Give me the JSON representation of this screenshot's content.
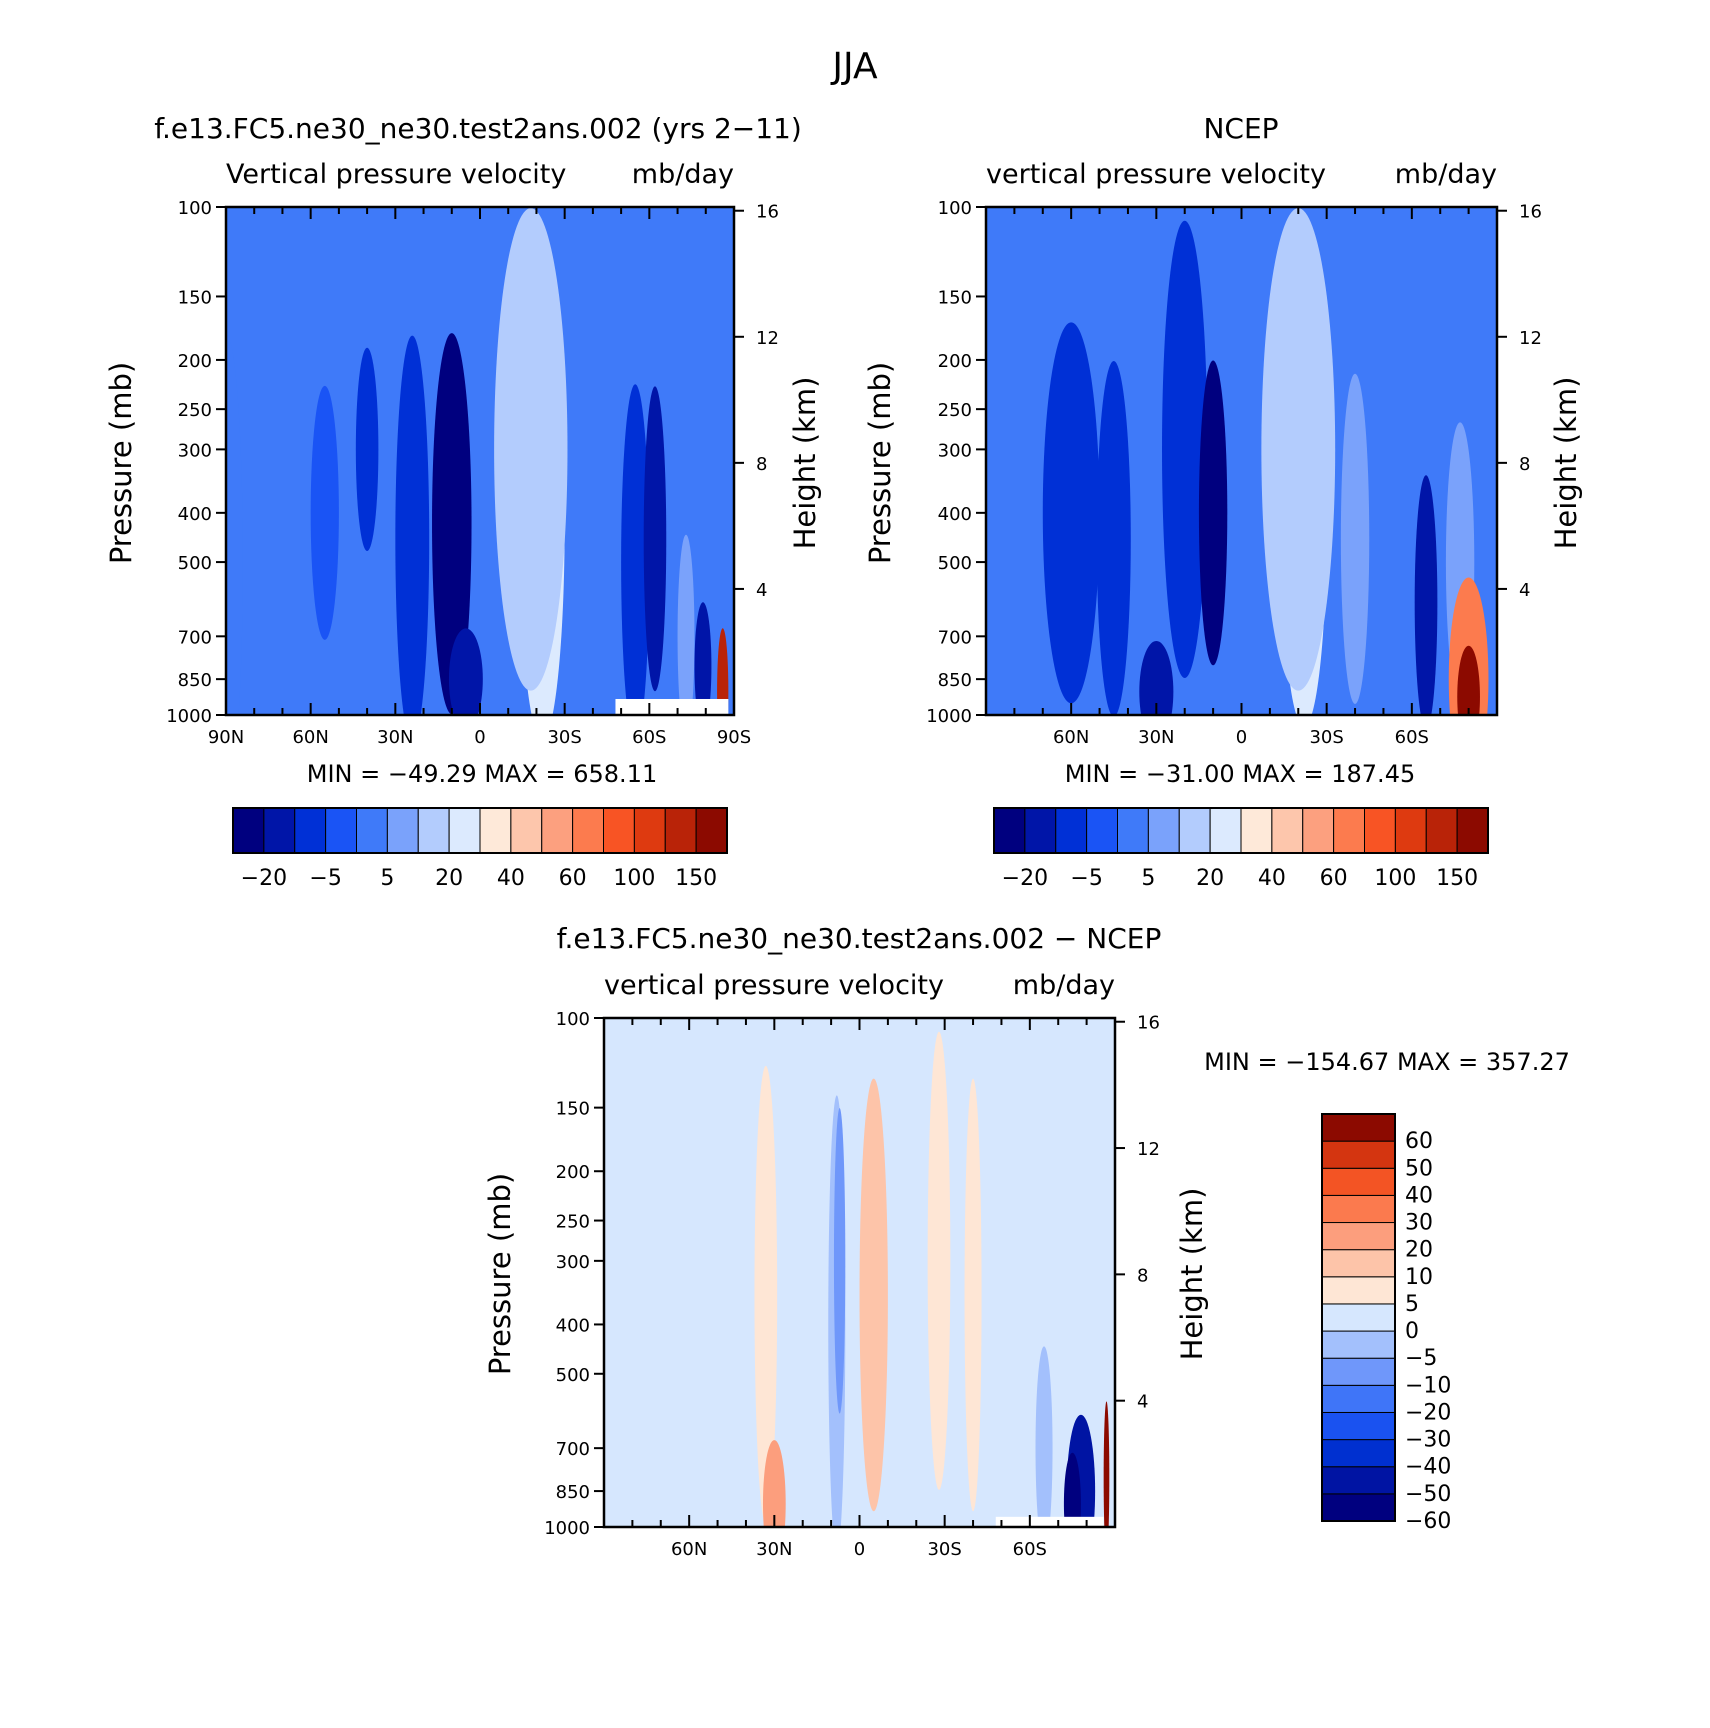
{
  "figure": {
    "title": "JJA"
  },
  "palettes": {
    "full": [
      "#00007f",
      "#0015a8",
      "#0030d6",
      "#1a54f5",
      "#3f7af9",
      "#7aa2fb",
      "#b3ccfd",
      "#dceafe",
      "#fee9d9",
      "#fdc6ac",
      "#fca07f",
      "#fc7b4e",
      "#f85424",
      "#de3a10",
      "#b92308",
      "#8c0a00"
    ],
    "diff": [
      "#00007f",
      "#0014a3",
      "#0030d0",
      "#1a52f0",
      "#3f75f8",
      "#6f97fa",
      "#a3c0fc",
      "#d6e7fe",
      "#fee6d5",
      "#fdc4a9",
      "#fc9e7d",
      "#fb7a4e",
      "#f35424",
      "#d43510",
      "#8c0a00"
    ]
  },
  "chart_data": [
    {
      "type": "heatmap",
      "title": "f.e13.FC5.ne30_ne30.test2ans.002 (yrs 2−11)",
      "subtitle": "Vertical pressure velocity",
      "units": "mb/day",
      "ylabel": "Pressure (mb)",
      "y2label": "Height (km)",
      "x_ticks": [
        "90N",
        "60N",
        "30N",
        "0",
        "30S",
        "60S",
        "90S"
      ],
      "y_ticks": [
        "100",
        "150",
        "200",
        "250",
        "300",
        "400",
        "500",
        "700",
        "850",
        "1000"
      ],
      "y2_ticks": [
        "16",
        "12",
        "8",
        "4"
      ],
      "xlim": [
        90,
        -90
      ],
      "ylim": [
        1000,
        100
      ],
      "y_scale": "log",
      "stats": "MIN = −49.29   MAX = 658.11",
      "colorbar_labels": [
        "−20",
        "−5",
        "5",
        "20",
        "40",
        "60",
        "100",
        "150"
      ],
      "field": [
        {
          "lat": 90,
          "p": 500,
          "level": 4,
          "rx": 6,
          "ry": 0.9
        },
        {
          "lat": 55,
          "p": 400,
          "level": 3,
          "rx": 5,
          "ry": 0.5
        },
        {
          "lat": 40,
          "p": 300,
          "level": 2,
          "rx": 4,
          "ry": 0.4
        },
        {
          "lat": 24,
          "p": 450,
          "level": 2,
          "rx": 6,
          "ry": 0.8
        },
        {
          "lat": 10,
          "p": 420,
          "level": 0,
          "rx": 7,
          "ry": 0.75
        },
        {
          "lat": 5,
          "p": 850,
          "level": 1,
          "rx": 6,
          "ry": 0.2
        },
        {
          "lat": -22,
          "p": 420,
          "level": 7,
          "rx": 8,
          "ry": 0.85
        },
        {
          "lat": -18,
          "p": 300,
          "level": 6,
          "rx": 13,
          "ry": 0.95
        },
        {
          "lat": -55,
          "p": 500,
          "level": 2,
          "rx": 5,
          "ry": 0.7
        },
        {
          "lat": -62,
          "p": 450,
          "level": 1,
          "rx": 4,
          "ry": 0.6
        },
        {
          "lat": -73,
          "p": 700,
          "level": 5,
          "rx": 3,
          "ry": 0.4
        },
        {
          "lat": -79,
          "p": 800,
          "level": 1,
          "rx": 3,
          "ry": 0.25
        },
        {
          "lat": -86,
          "p": 900,
          "level": 14,
          "rx": 2,
          "ry": 0.25
        }
      ],
      "missing": [
        {
          "lat0": -48,
          "lat1": -88,
          "p0": 930,
          "p1": 1000
        }
      ]
    },
    {
      "type": "heatmap",
      "title": "NCEP",
      "subtitle": "vertical pressure velocity",
      "units": "mb/day",
      "ylabel": "Pressure (mb)",
      "y2label": "Height (km)",
      "x_ticks": [
        "",
        "60N",
        "30N",
        "0",
        "30S",
        "60S",
        ""
      ],
      "y_ticks": [
        "100",
        "150",
        "200",
        "250",
        "300",
        "400",
        "500",
        "700",
        "850",
        "1000"
      ],
      "y2_ticks": [
        "16",
        "12",
        "8",
        "4"
      ],
      "xlim": [
        90,
        -90
      ],
      "ylim": [
        1000,
        100
      ],
      "y_scale": "log",
      "stats": "MIN = −31.00   MAX = 187.45",
      "colorbar_labels": [
        "−20",
        "−5",
        "5",
        "20",
        "40",
        "60",
        "100",
        "150"
      ],
      "field": [
        {
          "lat": 60,
          "p": 400,
          "level": 2,
          "rx": 10,
          "ry": 0.75
        },
        {
          "lat": 45,
          "p": 450,
          "level": 2,
          "rx": 6,
          "ry": 0.7
        },
        {
          "lat": 20,
          "p": 300,
          "level": 2,
          "rx": 8,
          "ry": 0.9
        },
        {
          "lat": 10,
          "p": 400,
          "level": 0,
          "rx": 5,
          "ry": 0.6
        },
        {
          "lat": 30,
          "p": 900,
          "level": 1,
          "rx": 6,
          "ry": 0.2
        },
        {
          "lat": -22,
          "p": 420,
          "level": 7,
          "rx": 8,
          "ry": 0.8
        },
        {
          "lat": -20,
          "p": 300,
          "level": 6,
          "rx": 13,
          "ry": 0.95
        },
        {
          "lat": -40,
          "p": 450,
          "level": 5,
          "rx": 5,
          "ry": 0.65
        },
        {
          "lat": -65,
          "p": 600,
          "level": 1,
          "rx": 4,
          "ry": 0.5
        },
        {
          "lat": -77,
          "p": 500,
          "level": 5,
          "rx": 5,
          "ry": 0.55
        },
        {
          "lat": -80,
          "p": 850,
          "level": 11,
          "rx": 7,
          "ry": 0.4
        },
        {
          "lat": -80,
          "p": 920,
          "level": 15,
          "rx": 4,
          "ry": 0.2
        }
      ],
      "missing": []
    },
    {
      "type": "heatmap",
      "title": "f.e13.FC5.ne30_ne30.test2ans.002 − NCEP",
      "subtitle": "vertical pressure velocity",
      "units": "mb/day",
      "ylabel": "Pressure (mb)",
      "y2label": "Height (km)",
      "x_ticks": [
        "",
        "60N",
        "30N",
        "0",
        "30S",
        "60S",
        ""
      ],
      "y_ticks": [
        "100",
        "150",
        "200",
        "250",
        "300",
        "400",
        "500",
        "700",
        "850",
        "1000"
      ],
      "y2_ticks": [
        "16",
        "12",
        "8",
        "4"
      ],
      "xlim": [
        90,
        -90
      ],
      "ylim": [
        1000,
        100
      ],
      "y_scale": "log",
      "stats": "MIN = −154.67   MAX = 357.27",
      "colorbar_labels": [
        "60",
        "50",
        "40",
        "30",
        "20",
        "10",
        "5",
        "0",
        "−5",
        "−10",
        "−20",
        "−30",
        "−40",
        "−50",
        "−60"
      ],
      "field": [
        {
          "lat": 33,
          "p": 350,
          "level": 8,
          "rx": 4,
          "ry": 0.9
        },
        {
          "lat": 30,
          "p": 900,
          "level": 10,
          "rx": 4,
          "ry": 0.25
        },
        {
          "lat": 8,
          "p": 400,
          "level": 6,
          "rx": 3,
          "ry": 0.9
        },
        {
          "lat": 7,
          "p": 300,
          "level": 5,
          "rx": 2,
          "ry": 0.6
        },
        {
          "lat": -5,
          "p": 350,
          "level": 9,
          "rx": 5,
          "ry": 0.85
        },
        {
          "lat": -28,
          "p": 300,
          "level": 8,
          "rx": 4,
          "ry": 0.9
        },
        {
          "lat": -40,
          "p": 350,
          "level": 8,
          "rx": 3,
          "ry": 0.85
        },
        {
          "lat": -65,
          "p": 700,
          "level": 6,
          "rx": 3,
          "ry": 0.4
        },
        {
          "lat": -78,
          "p": 850,
          "level": 1,
          "rx": 5,
          "ry": 0.3
        },
        {
          "lat": -75,
          "p": 900,
          "level": 0,
          "rx": 3,
          "ry": 0.2
        },
        {
          "lat": -87,
          "p": 800,
          "level": 14,
          "rx": 1,
          "ry": 0.3
        }
      ],
      "missing": [
        {
          "lat0": -48,
          "lat1": -86,
          "p0": 955,
          "p1": 1000
        }
      ]
    }
  ]
}
